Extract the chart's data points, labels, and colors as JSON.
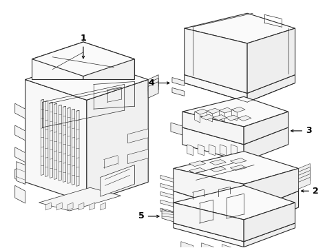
{
  "background_color": "#ffffff",
  "line_color": "#2a2a2a",
  "label_color": "#000000",
  "fig_width": 4.89,
  "fig_height": 3.6,
  "dpi": 100,
  "label_fontsize": 9,
  "arrow_lw": 0.8,
  "arrow_mutation_scale": 6
}
